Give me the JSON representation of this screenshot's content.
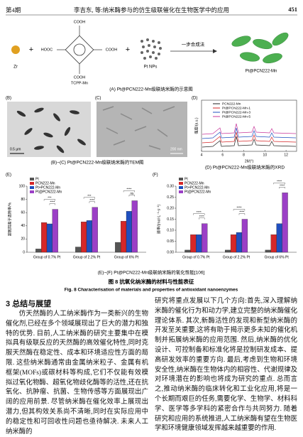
{
  "header": {
    "issue": "第4期",
    "running_title": "李吉东, 等:纳米酶参与的仿生级联催化在生物医学中的应用",
    "page_number": "451"
  },
  "figure": {
    "scheme": {
      "zr": "Zr",
      "linker": "TCPP-Mn",
      "cooh_top": "COOH",
      "cooh_left": "HOOC",
      "cooh_right": "COOH",
      "cooh_bottom": "COOH",
      "pt": "Pt NPs",
      "arrow": "一步合成法",
      "product": "Pt@PCN222-Mn",
      "caption": "(A) Pt@PCN222-Mn级联纳米酶的示意图"
    },
    "panel_b": {
      "label": "(B)",
      "scale": "0.5 μm"
    },
    "panel_c": {
      "label": "(C)",
      "scale": "200 nm"
    },
    "tem_caption": "(B)~(C) Pt@PCN222-Mn级联纳米酶的TEM图",
    "panel_d": {
      "label": "(D)",
      "ylabel": "强度/(a.u.)",
      "xlabel": "2θ/(°)",
      "xlim": [
        4,
        13
      ],
      "xticks": [
        4,
        6,
        8,
        10,
        12
      ],
      "legend": [
        {
          "name": "PCN222-Mn",
          "color": "#222222"
        },
        {
          "name": "Pt@PCN222-Mn-1",
          "color": "#d62728"
        },
        {
          "name": "Pt@PCN222-Mn-3",
          "color": "#1f4fbf"
        },
        {
          "name": "Pt@PCN222-Mn-5",
          "color": "#c8379b"
        }
      ],
      "caption": "(D) Pt@PCN222-Mn级联纳米酶的XRD"
    },
    "ef_caption": "(E)~(F) Pt@PCN222-Mn级联纳米酶的氧化性能[106]",
    "caption_cn": "图 8   抗氧化纳米酶的材料与性能表征",
    "caption_en": "Fig. 8   Characterisation of materials and properties of antioxidant nanoenzymes"
  },
  "chart_data": [
    {
      "type": "bar",
      "label": "(E)",
      "ylabel": "超氧阴离子清除率/%",
      "categories": [
        "Group of 0.7% Pt",
        "Group of 2.2% Pt",
        "Group of 6% Pt"
      ],
      "series": [
        {
          "name": "Pt",
          "color": "#555555",
          "values": [
            5,
            8,
            15
          ]
        },
        {
          "name": "PCN222-Mn",
          "color": "#d62728",
          "values": [
            45,
            46,
            47
          ]
        },
        {
          "name": "Pt+PCN222-Mn",
          "color": "#1f4fbf",
          "values": [
            43,
            48,
            62
          ]
        },
        {
          "name": "Pt@PCN222-Mn",
          "color": "#9b3fc6",
          "values": [
            65,
            68,
            78
          ]
        }
      ],
      "ylim": [
        0,
        100
      ],
      "yticks": [
        0,
        20,
        40,
        60,
        80,
        100
      ],
      "annotations": [
        [
          "***",
          "****"
        ],
        [
          "***",
          "****"
        ],
        [
          "****",
          "ns"
        ]
      ]
    },
    {
      "type": "bar",
      "label": "(F)",
      "ylabel": "速率/(mol·L⁻¹·s⁻¹)",
      "categories": [
        "Group of 0.7% Pt",
        "Group of 2.2% Pt",
        "Group of 6% Pt"
      ],
      "series": [
        {
          "name": "Pt",
          "color": "#555555",
          "values": [
            0.01,
            0.01,
            0.01
          ]
        },
        {
          "name": "PCN222-Mn",
          "color": "#d62728",
          "values": [
            0.08,
            0.08,
            0.08
          ]
        },
        {
          "name": "Pt+PCN222-Mn",
          "color": "#1f4fbf",
          "values": [
            0.08,
            0.09,
            0.13
          ]
        },
        {
          "name": "Pt@PCN222-Mn",
          "color": "#9b3fc6",
          "values": [
            0.13,
            0.15,
            0.27
          ]
        }
      ],
      "ylim": [
        0,
        0.3
      ],
      "yticks": [
        {
          "value": 0,
          "label": "0.00"
        },
        0.05,
        {
          "value": 0.1,
          "label": "0.10"
        },
        0.15,
        {
          "value": 0.2,
          "label": "0.20"
        },
        0.25,
        {
          "value": 0.3,
          "label": "0.30"
        }
      ],
      "annotations": [
        [
          "****",
          "****"
        ],
        [
          "****",
          "****"
        ],
        [
          "****",
          "****"
        ]
      ]
    }
  ],
  "section": {
    "title": "3   总结与展望"
  },
  "body": {
    "left": "仿天然酶的人工纳米酶作为一类新兴的生物催化剂,已经在多个领域展现出了巨大的潜力和独特的优势. 目前,人工纳米酶的研究主要集中在模拟具有级联反应的天然酶的高效催化特性,同时克服天然酶在稳定性、成本和环境适应性方面的局限. 这些纳米酶通常由金属纳米粒子、金属有机框架(MOFs)或碳材料等构成,它们不仅能有效模拟过氧化物酶、超氧化物歧化酶等的活性,还在抗氧化、抗肿瘤、抗菌、生物传感等方面展现出广阔的应用前景. 尽管纳米酶在催化效率上展现出潜力,但其构效关系尚不清晰,同时在实际应用中的稳定性和可回收性问题也亟待解决. 未来人工纳米酶的",
    "right": "研究将重点发展以下几个方向:首先,深入理解纳米酶的催化行为和动力学,建立完整的纳米酶催化理论体系. 其次,新酶活性的发现和新型纳米酶的开发至关重要,这将有助于揭示更多未知的催化机制并拓展纳米酶的应用范围. 然后,纳米酶的优化设计、可控制备和标准化将是控制研发成本、提高研发效率的重要方向. 最后,考虑到生物和环境安全性,纳米酶在生物体内的相容性、代谢规律及对环境潜在的影响也将成为研究的重点. 总而言之,推动纳米酶的临床转化和工业化应用,将是一个长期而艰巨的任务,需要化学、生物学、材料科学、医学等多学科的紧密合作与共同努力. 随着研究和应用的系统推进,人工纳米酶有望在生物医学和环境健康领域发挥越来越重要的作用."
  }
}
